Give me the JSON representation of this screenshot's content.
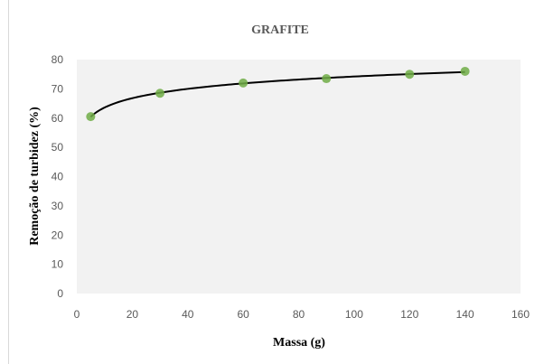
{
  "chart_data": {
    "type": "scatter",
    "title": "GRAFITE",
    "xlabel": "Massa (g)",
    "ylabel": "Remoção de turbidez (%)",
    "xlim": [
      0,
      160
    ],
    "ylim": [
      0,
      80
    ],
    "x_ticks": [
      "0",
      "20",
      "40",
      "60",
      "80",
      "100",
      "120",
      "140",
      "160"
    ],
    "y_ticks": [
      "0",
      "10",
      "20",
      "30",
      "40",
      "50",
      "60",
      "70",
      "80"
    ],
    "series": [
      {
        "points": [
          {
            "x": 5,
            "y": 60.5
          },
          {
            "x": 30,
            "y": 68.5
          },
          {
            "x": 60,
            "y": 72
          },
          {
            "x": 90,
            "y": 73.5
          },
          {
            "x": 120,
            "y": 75
          },
          {
            "x": 140,
            "y": 76
          }
        ],
        "marker_color": "#70ad47"
      }
    ],
    "trendline": {
      "type": "logarithmic",
      "color": "#000000"
    },
    "plot_background": "#f2f2f2",
    "grid": false,
    "legend": "none"
  }
}
